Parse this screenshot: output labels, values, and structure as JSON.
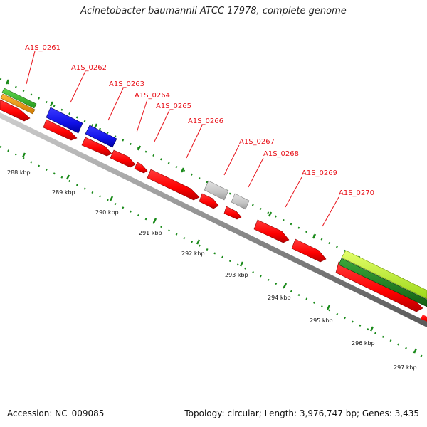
{
  "title": "Acinetobacter baumannii ATCC 17978, complete genome",
  "footer": {
    "accession": "Accession: NC_009085",
    "summary": "Topology: circular; Length: 3,976,747 bp; Genes: 3,435"
  },
  "colors": {
    "label": "#e8121a",
    "tick": "#1a8a1a",
    "backbone": "#8a8a8a",
    "cds": "#ff0000",
    "blue_feature": "#1010e8",
    "gray_feature": "#c4c4c4",
    "green_feature": "#3bbf2c",
    "orange_feature": "#f29a12",
    "light_green_feature": "#b8ee2a",
    "dark_green_feature": "#1f8f1f"
  },
  "gene_labels": [
    {
      "name": "A1S_0261"
    },
    {
      "name": "A1S_0262"
    },
    {
      "name": "A1S_0263"
    },
    {
      "name": "A1S_0264"
    },
    {
      "name": "A1S_0265"
    },
    {
      "name": "A1S_0266"
    },
    {
      "name": "A1S_0267"
    },
    {
      "name": "A1S_0268"
    },
    {
      "name": "A1S_0269"
    },
    {
      "name": "A1S_0270"
    }
  ],
  "scale_labels": [
    "288 kbp",
    "289 kbp",
    "290 kbp",
    "291 kbp",
    "292 kbp",
    "293 kbp",
    "294 kbp",
    "295 kbp",
    "296 kbp",
    "297 kbp"
  ]
}
